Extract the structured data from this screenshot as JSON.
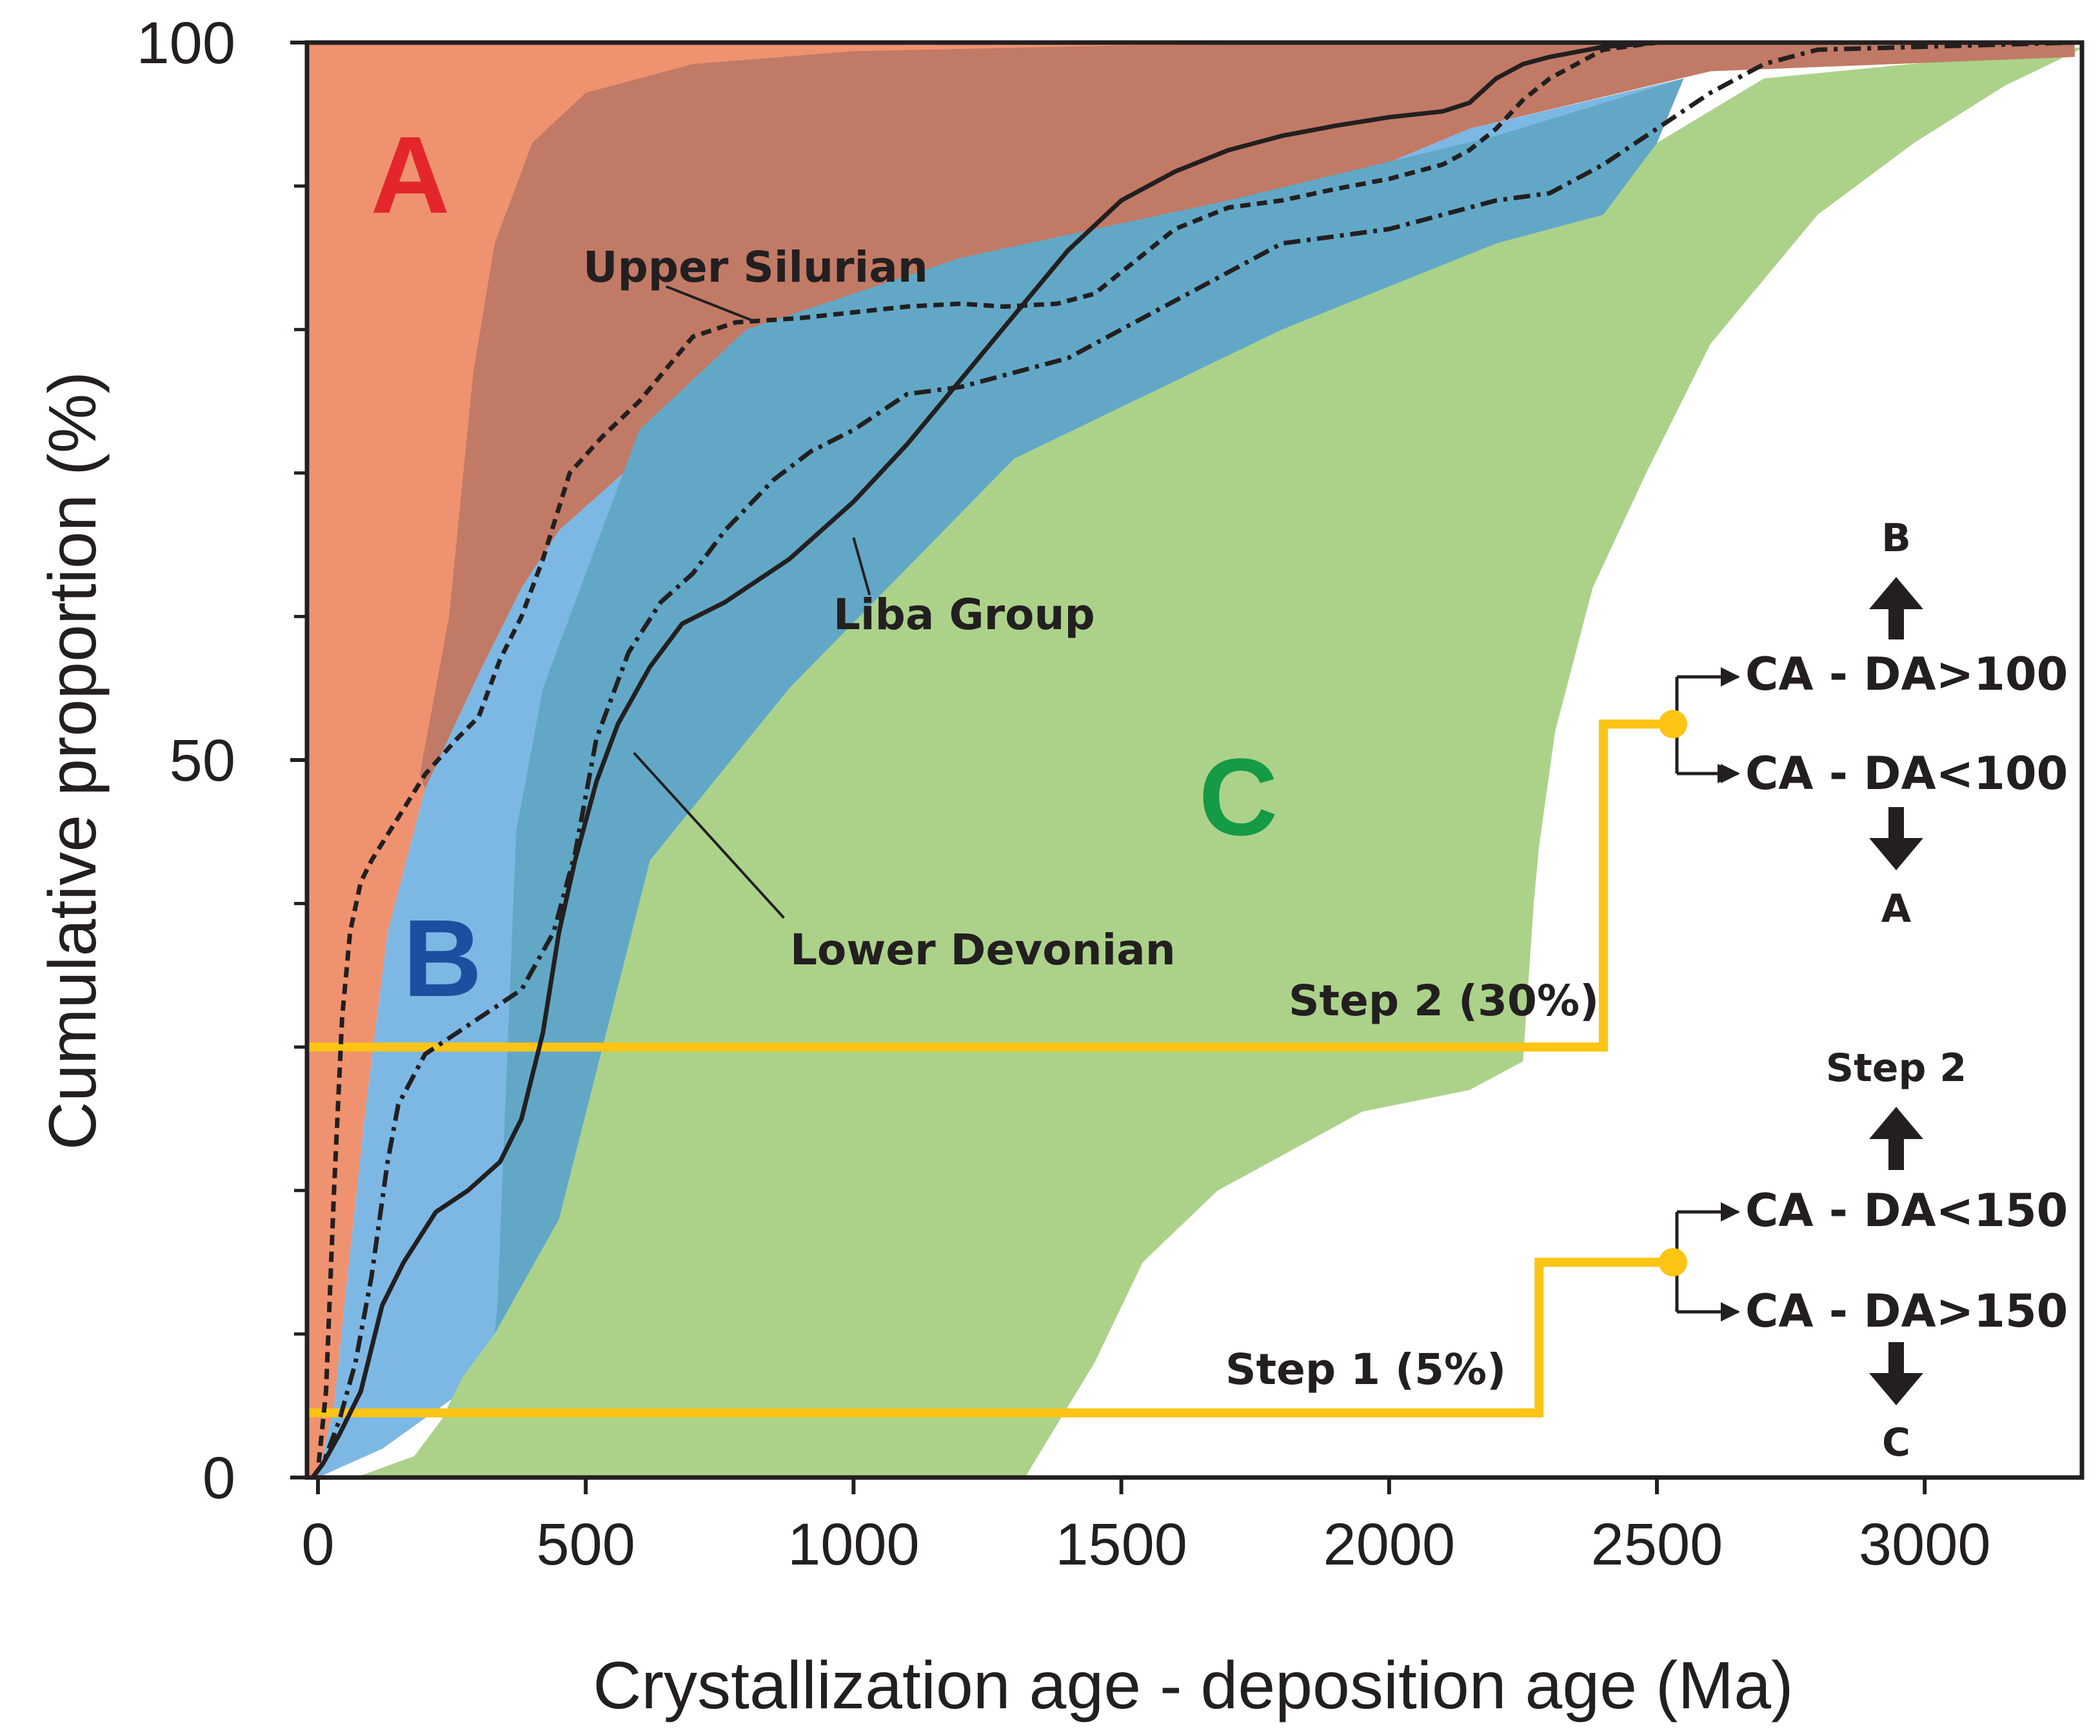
{
  "chart_data": {
    "type": "line",
    "title": "",
    "xlabel": "Crystallization age - deposition age (Ma)",
    "ylabel": "Cumulative proportion (%)",
    "xlim": [
      -20,
      3280
    ],
    "ylim": [
      0,
      100
    ],
    "x_ticks": [
      0,
      500,
      1000,
      1500,
      2000,
      2500,
      3000
    ],
    "y_ticks": [
      0,
      50,
      100
    ],
    "y_minor_ticks": [
      10,
      20,
      30,
      40,
      60,
      70,
      80,
      90
    ],
    "colors": {
      "region_A": "#ef9270",
      "region_A_dark": "#c17a66",
      "region_B": "#7db8e4",
      "region_B_dark": "#62a8c6",
      "region_C": "#acd28a",
      "step_line": "#fcc414",
      "curve": "#231f20",
      "label_A": "#e3262b",
      "label_B": "#1e4ea0",
      "label_C": "#159a46"
    },
    "regions": [
      {
        "name": "A",
        "label": "A",
        "label_pos": [
          170,
          90
        ],
        "polygon": [
          [
            -20,
            0
          ],
          [
            -20,
            100
          ],
          [
            3280,
            100
          ],
          [
            3280,
            99
          ],
          [
            2600,
            98
          ],
          [
            2150,
            94
          ],
          [
            1700,
            87
          ],
          [
            1300,
            81
          ],
          [
            900,
            76
          ],
          [
            600,
            71
          ],
          [
            450,
            66
          ],
          [
            380,
            62
          ],
          [
            300,
            56
          ],
          [
            200,
            48
          ],
          [
            130,
            38
          ],
          [
            90,
            26
          ],
          [
            55,
            14
          ],
          [
            30,
            5
          ],
          [
            0,
            0
          ]
        ]
      },
      {
        "name": "A_overlap",
        "label": "",
        "polygon": [
          [
            190,
            49
          ],
          [
            245,
            60
          ],
          [
            290,
            77
          ],
          [
            330,
            86
          ],
          [
            400,
            93
          ],
          [
            500,
            96.5
          ],
          [
            700,
            98.5
          ],
          [
            1000,
            99.4
          ],
          [
            1500,
            99.8
          ],
          [
            2500,
            100
          ],
          [
            3280,
            100
          ],
          [
            3280,
            99
          ],
          [
            2600,
            98
          ],
          [
            2150,
            94
          ],
          [
            1700,
            87
          ],
          [
            1300,
            81
          ],
          [
            900,
            76
          ],
          [
            600,
            71
          ],
          [
            450,
            66
          ],
          [
            380,
            62
          ],
          [
            300,
            56
          ],
          [
            200,
            48
          ]
        ]
      },
      {
        "name": "B",
        "label": "B",
        "label_pos": [
          230,
          36
        ],
        "polygon": [
          [
            0,
            0
          ],
          [
            30,
            5
          ],
          [
            55,
            14
          ],
          [
            90,
            26
          ],
          [
            130,
            38
          ],
          [
            200,
            48
          ],
          [
            300,
            56
          ],
          [
            380,
            62
          ],
          [
            450,
            66
          ],
          [
            600,
            71
          ],
          [
            900,
            76
          ],
          [
            1300,
            81
          ],
          [
            1700,
            87
          ],
          [
            2150,
            94
          ],
          [
            2550,
            97.5
          ],
          [
            2500,
            93
          ],
          [
            2400,
            88
          ],
          [
            2200,
            86
          ],
          [
            1800,
            80
          ],
          [
            1300,
            71
          ],
          [
            880,
            55
          ],
          [
            620,
            43
          ],
          [
            450,
            18
          ],
          [
            330,
            10
          ],
          [
            270,
            6
          ],
          [
            120,
            2
          ]
        ]
      },
      {
        "name": "B_overlap",
        "label": "",
        "polygon": [
          [
            335,
            12
          ],
          [
            370,
            45
          ],
          [
            420,
            55
          ],
          [
            500,
            63
          ],
          [
            600,
            73
          ],
          [
            800,
            80
          ],
          [
            1200,
            85
          ],
          [
            1700,
            89
          ],
          [
            2200,
            93.5
          ],
          [
            2550,
            97.5
          ],
          [
            2500,
            93
          ],
          [
            2400,
            88
          ],
          [
            2200,
            86
          ],
          [
            1800,
            80
          ],
          [
            1300,
            71
          ],
          [
            880,
            55
          ],
          [
            620,
            43
          ],
          [
            450,
            18
          ],
          [
            330,
            10
          ]
        ]
      },
      {
        "name": "C",
        "label": "C",
        "label_pos": [
          1720,
          47
        ],
        "polygon": [
          [
            70,
            0
          ],
          [
            180,
            1.5
          ],
          [
            230,
            4
          ],
          [
            270,
            7
          ],
          [
            330,
            10
          ],
          [
            450,
            18
          ],
          [
            620,
            43
          ],
          [
            880,
            55
          ],
          [
            1300,
            71
          ],
          [
            1800,
            80
          ],
          [
            2200,
            86
          ],
          [
            2400,
            88
          ],
          [
            2500,
            93
          ],
          [
            2700,
            97.5
          ],
          [
            3300,
            99.7
          ],
          [
            3300,
            99.7
          ],
          [
            3150,
            97
          ],
          [
            2980,
            93
          ],
          [
            2800,
            88
          ],
          [
            2600,
            79
          ],
          [
            2480,
            70
          ],
          [
            2380,
            62
          ],
          [
            2310,
            52
          ],
          [
            2280,
            44
          ],
          [
            2270,
            40
          ],
          [
            2250,
            29
          ],
          [
            2150,
            27
          ],
          [
            1950,
            25.5
          ],
          [
            1680,
            20
          ],
          [
            1540,
            15
          ],
          [
            1450,
            8
          ],
          [
            1320,
            0
          ]
        ]
      }
    ],
    "series": [
      {
        "name": "Upper Silurian",
        "style": "dashed",
        "x": [
          -10,
          0,
          15,
          30,
          45,
          60,
          80,
          100,
          150,
          200,
          260,
          300,
          340,
          380,
          420,
          470,
          530,
          600,
          700,
          780,
          900,
          1000,
          1100,
          1200,
          1280,
          1380,
          1450,
          1500,
          1600,
          1700,
          1800,
          1900,
          2000,
          2100,
          2150,
          2200,
          2250,
          2300,
          2350,
          2400,
          2500,
          3280
        ],
        "y": [
          0,
          0.5,
          6,
          20,
          32,
          38,
          41.5,
          43,
          46,
          49,
          51.5,
          53,
          57,
          60,
          64,
          70,
          72.5,
          75,
          79.5,
          80.5,
          80.8,
          81.2,
          81.6,
          81.8,
          81.6,
          81.8,
          82.5,
          84,
          87,
          88.5,
          89,
          89.8,
          90.5,
          91.5,
          92.5,
          94,
          96,
          97.5,
          98.5,
          99.5,
          100,
          100
        ],
        "label": "Upper Silurian"
      },
      {
        "name": "Liba Group",
        "style": "solid",
        "x": [
          -10,
          10,
          40,
          80,
          120,
          160,
          220,
          280,
          340,
          380,
          420,
          450,
          480,
          520,
          560,
          620,
          680,
          760,
          880,
          1000,
          1100,
          1200,
          1300,
          1400,
          1500,
          1600,
          1700,
          1800,
          1900,
          2000,
          2100,
          2150,
          2200,
          2250,
          2300,
          2400,
          2500,
          3280
        ],
        "y": [
          0,
          1,
          3,
          6,
          12,
          15,
          18.5,
          20,
          22,
          25,
          31,
          38,
          43,
          48.5,
          52.5,
          56.5,
          59.5,
          61,
          64,
          68,
          72,
          76.5,
          81,
          85.5,
          89,
          91,
          92.5,
          93.5,
          94.2,
          94.8,
          95.2,
          95.8,
          97.5,
          98.5,
          99,
          99.7,
          100,
          100
        ],
        "label": "Liba Group"
      },
      {
        "name": "Lower Devonian",
        "style": "dashdot",
        "x": [
          -10,
          10,
          40,
          70,
          100,
          130,
          150,
          200,
          280,
          380,
          440,
          480,
          520,
          580,
          640,
          700,
          760,
          850,
          920,
          1000,
          1100,
          1200,
          1300,
          1400,
          1500,
          1600,
          1700,
          1800,
          1900,
          2000,
          2100,
          2200,
          2300,
          2400,
          2500,
          2600,
          2700,
          2800,
          3280
        ],
        "y": [
          0,
          1,
          4,
          8,
          14,
          22,
          26,
          29.5,
          31.5,
          34,
          38,
          43.5,
          51.5,
          57.5,
          61,
          63,
          66,
          69.5,
          71.5,
          73,
          75.5,
          76,
          77,
          78,
          80,
          82,
          84,
          86,
          86.5,
          87,
          88,
          89,
          89.5,
          91.5,
          94,
          96.5,
          98.5,
          99.5,
          100
        ],
        "label": "Lower Devonian"
      }
    ],
    "annotations": {
      "upper_silurian": {
        "text": "Upper Silurian",
        "pos": [
          490,
          84
        ],
        "leader": [
          [
            650,
            83
          ],
          [
            820,
            80.5
          ]
        ]
      },
      "liba_group": {
        "text": "Liba Group",
        "pos": [
          960,
          60
        ],
        "leader": [
          [
            1030,
            61.5
          ],
          [
            1000,
            65.5
          ]
        ]
      },
      "lower_devonian": {
        "text": "Lower Devonian",
        "pos": [
          880,
          36.5
        ],
        "leader": [
          [
            870,
            39
          ],
          [
            590,
            50.5
          ]
        ]
      },
      "step2_label": {
        "text": "Step 2 (30%)",
        "pos": [
          1810,
          32.5
        ]
      },
      "step1_label": {
        "text": "Step 1 (5%)",
        "pos": [
          1690,
          6.8
        ]
      }
    },
    "step_lines": [
      {
        "name": "Step 2 (30%)",
        "points": [
          [
            -20,
            30
          ],
          [
            2400,
            30
          ],
          [
            2400,
            52.5
          ],
          [
            2530,
            52.5
          ]
        ],
        "node": [
          2530,
          52.5
        ]
      },
      {
        "name": "Step 1 (5%)",
        "points": [
          [
            -20,
            4.5
          ],
          [
            2280,
            4.5
          ],
          [
            2280,
            15
          ],
          [
            2530,
            15
          ]
        ],
        "node": [
          2530,
          15
        ]
      }
    ],
    "decision_tree": {
      "step2_upper_rule": "CA - DA>100",
      "step2_lower_rule": "CA - DA<100",
      "step2_up_result": "B",
      "step2_down_result": "A",
      "step1_upper_rule": "CA - DA<150",
      "step1_lower_rule": "CA - DA>150",
      "step1_up_result": "Step 2",
      "step1_down_result": "C"
    }
  }
}
